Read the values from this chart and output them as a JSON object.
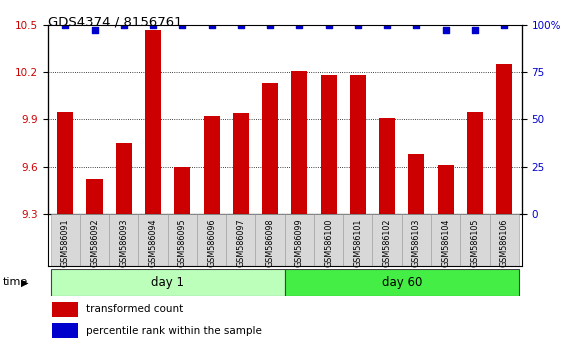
{
  "title": "GDS4374 / 8156761",
  "samples": [
    "GSM586091",
    "GSM586092",
    "GSM586093",
    "GSM586094",
    "GSM586095",
    "GSM586096",
    "GSM586097",
    "GSM586098",
    "GSM586099",
    "GSM586100",
    "GSM586101",
    "GSM586102",
    "GSM586103",
    "GSM586104",
    "GSM586105",
    "GSM586106"
  ],
  "bar_values": [
    9.95,
    9.52,
    9.75,
    10.47,
    9.6,
    9.92,
    9.94,
    10.13,
    10.21,
    10.18,
    10.18,
    9.91,
    9.68,
    9.61,
    9.95,
    10.25
  ],
  "percentile_values": [
    100,
    97,
    100,
    100,
    100,
    100,
    100,
    100,
    100,
    100,
    100,
    100,
    100,
    97,
    97,
    100
  ],
  "bar_color": "#cc0000",
  "dot_color": "#0000cc",
  "ylim_left": [
    9.3,
    10.5
  ],
  "ylim_right": [
    0,
    100
  ],
  "yticks_left": [
    9.3,
    9.6,
    9.9,
    10.2,
    10.5
  ],
  "yticks_right": [
    0,
    25,
    50,
    75,
    100
  ],
  "day1_count": 8,
  "day60_count": 8,
  "day1_label": "day 1",
  "day60_label": "day 60",
  "day1_color": "#bbffbb",
  "day60_color": "#44ee44",
  "tick_label_area_color": "#d8d8d8",
  "legend_bar_label": "transformed count",
  "legend_dot_label": "percentile rank within the sample",
  "time_label": "time"
}
